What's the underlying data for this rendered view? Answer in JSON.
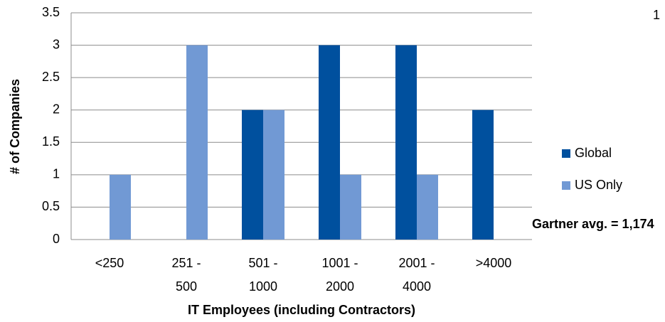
{
  "chart_data": {
    "type": "bar",
    "categories": [
      "<250",
      "251 - 500",
      "501 - 1000",
      "1001 - 2000",
      "2001 - 4000",
      ">4000"
    ],
    "series": [
      {
        "name": "Global",
        "color": "#00509e",
        "values": [
          0,
          0,
          2,
          3,
          3,
          2
        ]
      },
      {
        "name": "US Only",
        "color": "#7199d4",
        "values": [
          1,
          3,
          2,
          1,
          1,
          0
        ]
      }
    ],
    "ylim": [
      0,
      3.5
    ],
    "yticks": [
      0,
      0.5,
      1,
      1.5,
      2,
      2.5,
      3,
      3.5
    ],
    "grid": true,
    "y_label": "# of Companies",
    "x_label": "IT Employees (including Contractors)",
    "annotations": [
      "Gartner avg. = 1,174",
      "1"
    ],
    "legend": "right"
  }
}
